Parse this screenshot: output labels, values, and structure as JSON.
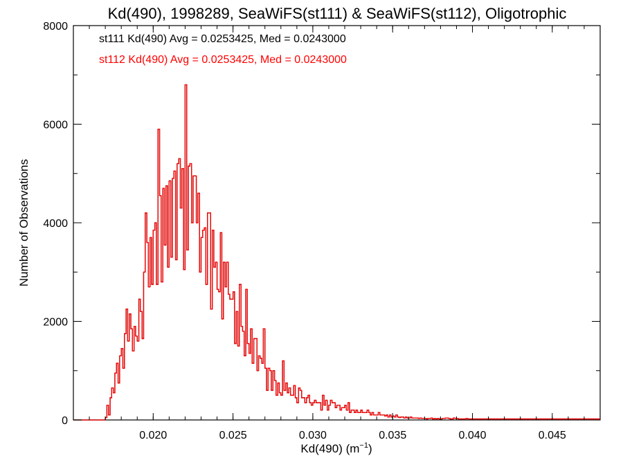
{
  "chart_data": {
    "type": "histogram",
    "title": "Kd(490), 1998289, SeaWiFS(st111) & SeaWiFS(st112), Oligotrophic",
    "xlabel": "Kd(490) (m",
    "xlabel_sup": "−1",
    "xlabel_close": ")",
    "ylabel": "Number of Observations",
    "xlim": [
      0.015,
      0.048
    ],
    "ylim": [
      0,
      8000
    ],
    "x_ticks": [
      "0.020",
      "0.025",
      "0.030",
      "0.035",
      "0.040",
      "0.045"
    ],
    "y_ticks": [
      "0",
      "2000",
      "4000",
      "6000",
      "8000"
    ],
    "annotations": [
      {
        "text": "st111 Kd(490) Avg = 0.0253425, Med = 0.0243000",
        "color": "#000000"
      },
      {
        "text": "st112 Kd(490) Avg = 0.0253425, Med = 0.0243000",
        "color": "#ff0000"
      }
    ],
    "series": [
      {
        "name": "st111",
        "color": "#000000",
        "hidden_behind_st112": true
      },
      {
        "name": "st112",
        "color": "#ff0000"
      }
    ],
    "bin_width": 0.0001,
    "bin_start": 0.015,
    "counts": [
      0,
      0,
      0,
      0,
      0,
      0,
      0,
      0,
      0,
      0,
      0,
      0,
      0,
      0,
      0,
      0,
      0,
      0,
      0,
      0,
      50,
      300,
      100,
      450,
      650,
      550,
      950,
      1150,
      750,
      1300,
      1450,
      1050,
      1750,
      2250,
      1600,
      2150,
      1850,
      1400,
      1900,
      1700,
      1600,
      2450,
      2200,
      1650,
      3000,
      4200,
      3600,
      2700,
      3700,
      2750,
      3850,
      4000,
      2750,
      5900,
      4550,
      2800,
      4700,
      3550,
      4750,
      3100,
      4850,
      3300,
      4900,
      5050,
      3250,
      5200,
      5300,
      4300,
      5100,
      3050,
      6800,
      3450,
      5150,
      5200,
      4000,
      4950,
      4950,
      4000,
      4600,
      3000,
      3700,
      3850,
      3900,
      2750,
      4200,
      4200,
      2250,
      3850,
      3100,
      3200,
      2650,
      2600,
      3800,
      2050,
      3200,
      2700,
      3200,
      2550,
      2450,
      2450,
      2600,
      1550,
      2200,
      1500,
      2750,
      1900,
      1800,
      1300,
      2650,
      1550,
      1350,
      1850,
      1150,
      1650,
      1650,
      1000,
      1300,
      1250,
      1150,
      1850,
      1050,
      600,
      1050,
      1000,
      600,
      1000,
      800,
      500,
      750,
      550,
      500,
      1200,
      600,
      750,
      550,
      650,
      500,
      500,
      700,
      450,
      350,
      650,
      600,
      450,
      450,
      350,
      450,
      500,
      350,
      300,
      350,
      400,
      350,
      350,
      350,
      200,
      500,
      300,
      400,
      200,
      300,
      400,
      350,
      350,
      250,
      300,
      300,
      200,
      250,
      250,
      300,
      200,
      350,
      150,
      200,
      200,
      150,
      200,
      150,
      150,
      200,
      150,
      150,
      150,
      200,
      150,
      100,
      150,
      100,
      100,
      100,
      150,
      100,
      100,
      100,
      80,
      100,
      60,
      100,
      60,
      80,
      60,
      100,
      60,
      50,
      60,
      60,
      40,
      60,
      40,
      40,
      60,
      40,
      40,
      40,
      40,
      30,
      40,
      30,
      30,
      30,
      20,
      30,
      30,
      40,
      20,
      30,
      20,
      30,
      20,
      20,
      30,
      30,
      40,
      40,
      30,
      20,
      20,
      40,
      30,
      30,
      20,
      20,
      20,
      20,
      20,
      30,
      20,
      20,
      20
    ]
  }
}
